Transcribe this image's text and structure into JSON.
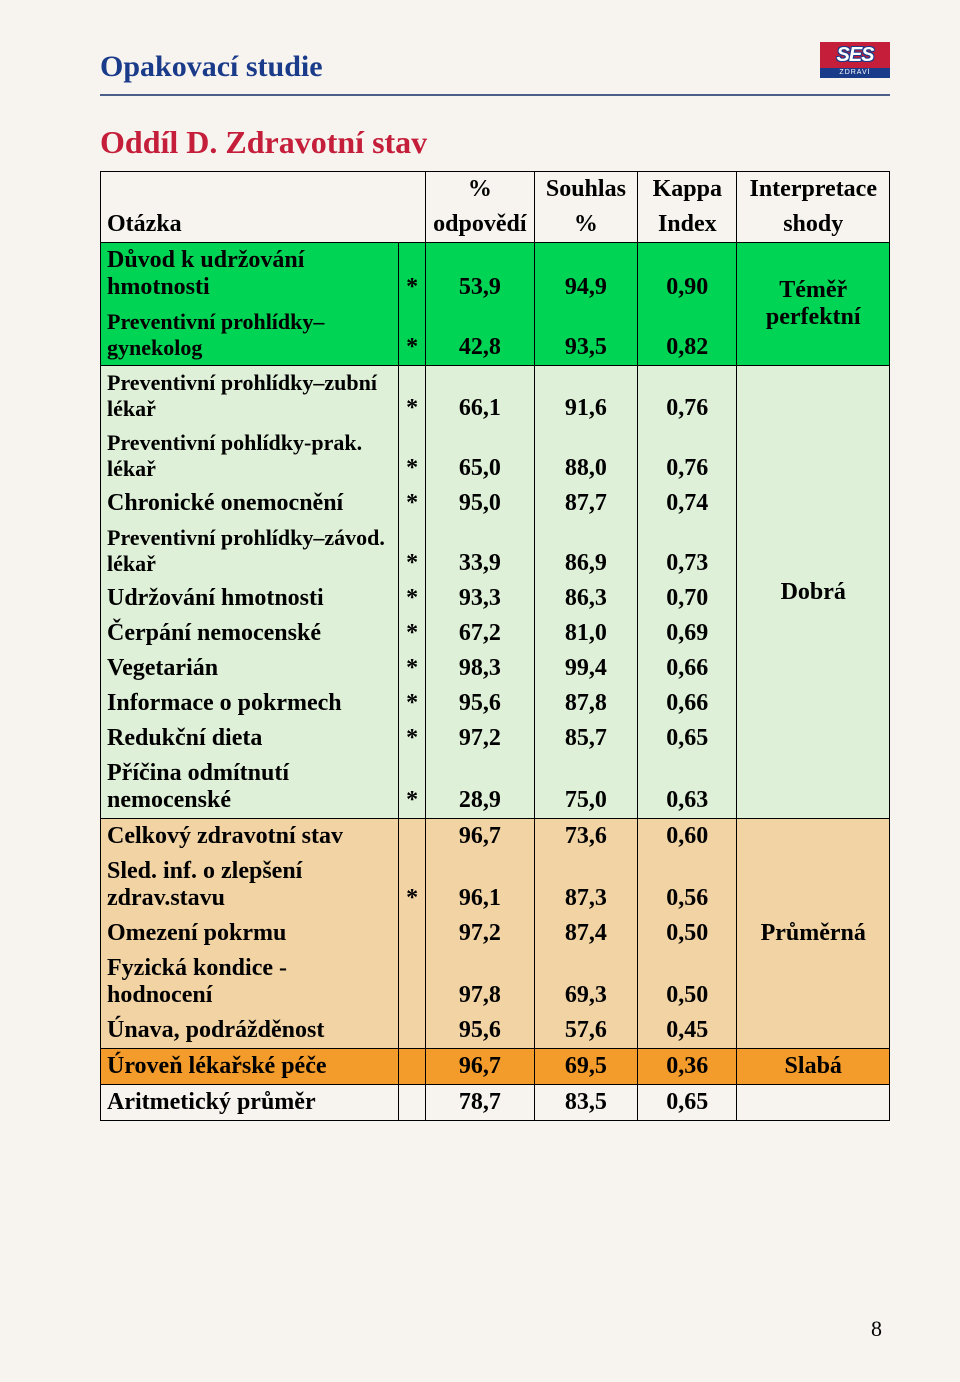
{
  "header": {
    "title": "Opakovací studie",
    "logo_text": "SES",
    "logo_sub": "ZDRAVÍ"
  },
  "section_title": "Oddíl D. Zdravotní stav",
  "table": {
    "col_headers_top": [
      "",
      "%",
      "Souhlas",
      "Kappa",
      "Interpretace"
    ],
    "col_headers_bottom": [
      "Otázka",
      "odpovědí",
      "%",
      "Index",
      "shody"
    ],
    "interpretations": {
      "temer_perfektni": "Téměř perfektní",
      "dobra": "Dobrá",
      "prumerna": "Průměrná",
      "slaba": "Slabá"
    },
    "rows": [
      {
        "label": "Důvod k udržování hmotnosti",
        "star": "*",
        "v1": "53,9",
        "v2": "94,9",
        "v3": "0,90",
        "group": "g1",
        "font": "n"
      },
      {
        "label": "Preventivní prohlídky– gynekolog",
        "star": "*",
        "v1": "42,8",
        "v2": "93,5",
        "v3": "0,82",
        "group": "g1",
        "font": "s"
      },
      {
        "label": "Preventivní prohlídky–zubní lékař",
        "star": "*",
        "v1": "66,1",
        "v2": "91,6",
        "v3": "0,76",
        "group": "g2",
        "font": "s"
      },
      {
        "label": "Preventivní pohlídky-prak. lékař",
        "star": "*",
        "v1": "65,0",
        "v2": "88,0",
        "v3": "0,76",
        "group": "g2",
        "font": "s"
      },
      {
        "label": "Chronické onemocnění",
        "star": "*",
        "v1": "95,0",
        "v2": "87,7",
        "v3": "0,74",
        "group": "g2",
        "font": "n"
      },
      {
        "label": "Preventivní prohlídky–závod. lékař",
        "star": "*",
        "v1": "33,9",
        "v2": "86,9",
        "v3": "0,73",
        "group": "g2",
        "font": "s"
      },
      {
        "label": "Udržování hmotnosti",
        "star": "*",
        "v1": "93,3",
        "v2": "86,3",
        "v3": "0,70",
        "group": "g2",
        "font": "n"
      },
      {
        "label": "Čerpání nemocenské",
        "star": "*",
        "v1": "67,2",
        "v2": "81,0",
        "v3": "0,69",
        "group": "g2",
        "font": "n"
      },
      {
        "label": "Vegetarián",
        "star": "*",
        "v1": "98,3",
        "v2": "99,4",
        "v3": "0,66",
        "group": "g2",
        "font": "n"
      },
      {
        "label": "Informace o pokrmech",
        "star": "*",
        "v1": "95,6",
        "v2": "87,8",
        "v3": "0,66",
        "group": "g2",
        "font": "n"
      },
      {
        "label": "Redukční dieta",
        "star": "*",
        "v1": "97,2",
        "v2": "85,7",
        "v3": "0,65",
        "group": "g2",
        "font": "n"
      },
      {
        "label": "Příčina odmítnutí nemocenské",
        "star": "*",
        "v1": "28,9",
        "v2": "75,0",
        "v3": "0,63",
        "group": "g2",
        "font": "n"
      },
      {
        "label": "Celkový zdravotní stav",
        "star": "",
        "v1": "96,7",
        "v2": "73,6",
        "v3": "0,60",
        "group": "g3",
        "font": "n"
      },
      {
        "label": "Sled. inf. o zlepšení zdrav.stavu",
        "star": "*",
        "v1": "96,1",
        "v2": "87,3",
        "v3": "0,56",
        "group": "g3",
        "font": "n"
      },
      {
        "label": "Omezení pokrmu",
        "star": "",
        "v1": "97,2",
        "v2": "87,4",
        "v3": "0,50",
        "group": "g3",
        "font": "n"
      },
      {
        "label": "Fyzická kondice - hodnocení",
        "star": "",
        "v1": "97,8",
        "v2": "69,3",
        "v3": "0,50",
        "group": "g3",
        "font": "n"
      },
      {
        "label": "Únava, podrážděnost",
        "star": "",
        "v1": "95,6",
        "v2": "57,6",
        "v3": "0,45",
        "group": "g3",
        "font": "n"
      },
      {
        "label": "Úroveň lékařské péče",
        "star": "",
        "v1": "96,7",
        "v2": "69,5",
        "v3": "0,36",
        "group": "g4",
        "font": "n"
      },
      {
        "label": "Aritmetický průměr",
        "star": "",
        "v1": "78,7",
        "v2": "83,5",
        "v3": "0,65",
        "group": "g5",
        "font": "n"
      }
    ],
    "colors": {
      "g1": "#00d455",
      "g2": "#dff0d8",
      "g3": "#f2d3a4",
      "g4": "#f39c2c",
      "g5": "transparent"
    },
    "interp_colors": {
      "g1": "#00d455",
      "g2": "#dff0d8",
      "g3": "#f2d3a4",
      "g4": "#f39c2c",
      "g5": "transparent"
    }
  },
  "page_number": "8"
}
